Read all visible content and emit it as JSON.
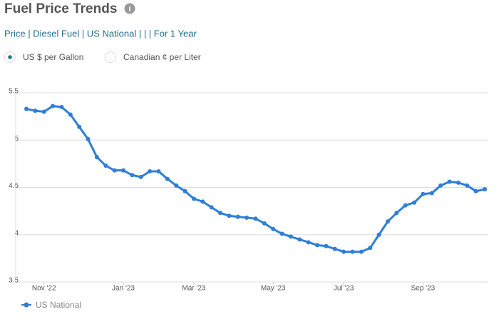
{
  "header": {
    "title": "Fuel Price Trends",
    "breadcrumb": "Price | Diesel Fuel | US National | | | For 1 Year"
  },
  "units": {
    "options": [
      "US $ per Gallon",
      "Canadian ¢ per Liter"
    ],
    "selected": 0
  },
  "chart_data": {
    "type": "line",
    "categories": [
      null,
      null,
      "Nov '22",
      null,
      null,
      null,
      null,
      null,
      null,
      null,
      null,
      "Jan '23",
      null,
      null,
      null,
      null,
      null,
      null,
      null,
      "Mar '23",
      null,
      null,
      null,
      null,
      null,
      null,
      null,
      null,
      "May '23",
      null,
      null,
      null,
      null,
      null,
      null,
      null,
      "Jul '23",
      null,
      null,
      null,
      null,
      null,
      null,
      null,
      null,
      "Sep '23",
      null,
      null,
      null,
      null,
      null,
      null,
      null
    ],
    "series": [
      {
        "name": "US National",
        "color": "#2f7ed8",
        "values": [
          5.33,
          5.31,
          5.3,
          5.36,
          5.35,
          5.27,
          5.14,
          5.01,
          4.82,
          4.73,
          4.68,
          4.68,
          4.63,
          4.61,
          4.67,
          4.67,
          4.59,
          4.52,
          4.46,
          4.38,
          4.35,
          4.29,
          4.23,
          4.2,
          4.19,
          4.18,
          4.17,
          4.12,
          4.06,
          4.01,
          3.98,
          3.95,
          3.92,
          3.89,
          3.88,
          3.85,
          3.82,
          3.82,
          3.82,
          3.86,
          4.0,
          4.14,
          4.23,
          4.31,
          4.34,
          4.43,
          4.44,
          4.52,
          4.56,
          4.55,
          4.52,
          4.46,
          4.48
        ]
      }
    ],
    "ylim": [
      3.5,
      5.5
    ],
    "yticks": [
      3.5,
      4,
      4.5,
      5,
      5.5
    ],
    "grid": true
  }
}
